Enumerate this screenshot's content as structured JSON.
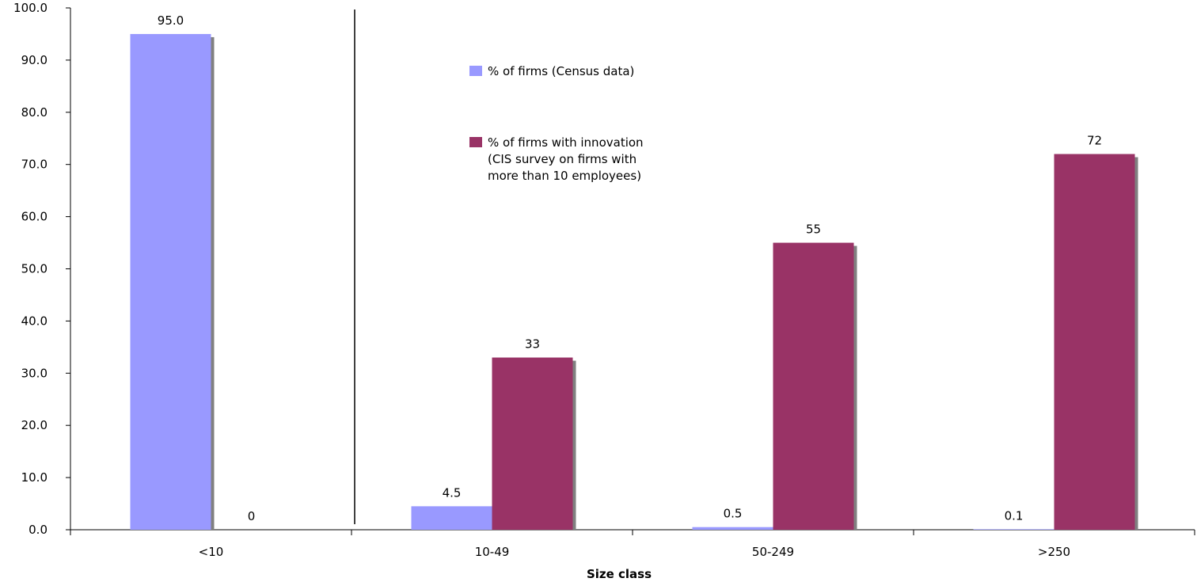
{
  "chart_data": {
    "type": "bar",
    "title": "",
    "xlabel": "Size class",
    "ylabel": "",
    "ylim": [
      0,
      100
    ],
    "yticks": [
      "0.0",
      "10.0",
      "20.0",
      "30.0",
      "40.0",
      "50.0",
      "60.0",
      "70.0",
      "80.0",
      "90.0",
      "100.0"
    ],
    "categories": [
      "<10",
      "10-49",
      "50-249",
      ">250"
    ],
    "grid": false,
    "legend_position": "top-center",
    "separator_after_category": "<10",
    "series": [
      {
        "name": "% of firms (Census data)",
        "color": "#9999ff",
        "values": [
          95.0,
          4.5,
          0.5,
          0.1
        ],
        "labels": [
          "95.0",
          "4.5",
          "0.5",
          "0.1"
        ]
      },
      {
        "name": "% of firms with innovation (CIS survey on firms with more than 10 employees)",
        "name_lines": [
          "% of firms with innovation",
          "(CIS survey on firms with",
          "more than 10 employees)"
        ],
        "color": "#993366",
        "values": [
          0,
          33,
          55,
          72
        ],
        "labels": [
          "0",
          "33",
          "55",
          "72"
        ]
      }
    ]
  }
}
